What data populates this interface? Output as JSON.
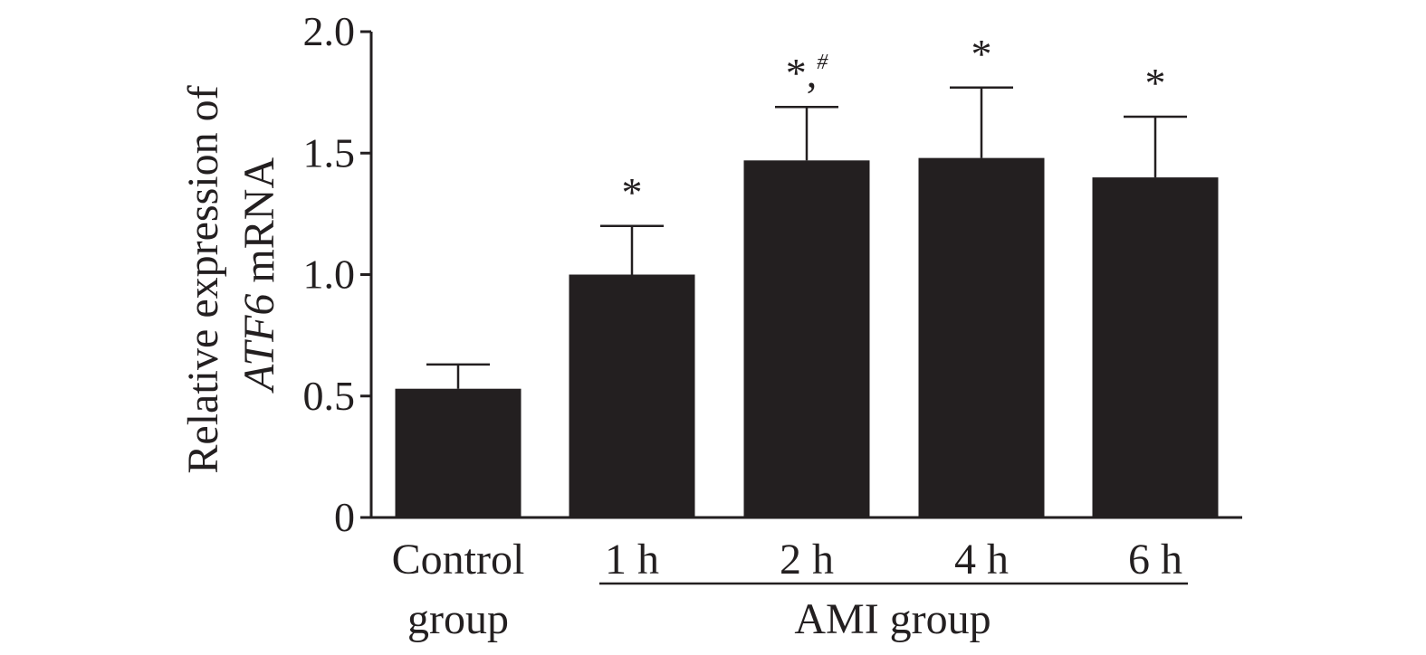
{
  "chart_data": {
    "type": "bar",
    "categories": [
      "Control group",
      "1 h",
      "2 h",
      "4 h",
      "6 h"
    ],
    "category_lines": [
      [
        "Control",
        "group"
      ],
      [
        "1 h"
      ],
      [
        "2 h"
      ],
      [
        "4 h"
      ],
      [
        "6 h"
      ]
    ],
    "values": [
      0.53,
      1.0,
      1.47,
      1.48,
      1.4
    ],
    "errors": [
      0.1,
      0.2,
      0.22,
      0.29,
      0.25
    ],
    "annotations": [
      {
        "main": "",
        "sup": ""
      },
      {
        "main": "*",
        "sup": ""
      },
      {
        "main": "*,",
        "sup": "#"
      },
      {
        "main": "*",
        "sup": ""
      },
      {
        "main": "*",
        "sup": ""
      }
    ],
    "ylabel_line1": "Relative expression of",
    "ylabel_line2_italic": "ATF6",
    "ylabel_line2_rest": " mRNA",
    "xlabel": "",
    "group_label": "AMI group",
    "yticks": [
      0,
      0.5,
      1.0,
      1.5,
      2.0
    ],
    "ytick_labels": [
      "0",
      "0.5",
      "1.0",
      "1.5",
      "2.0"
    ],
    "ylim": [
      0,
      2.0
    ],
    "grid": false,
    "colors": {
      "bar": "#231f20",
      "axis": "#231f20",
      "text": "#231f20"
    }
  }
}
